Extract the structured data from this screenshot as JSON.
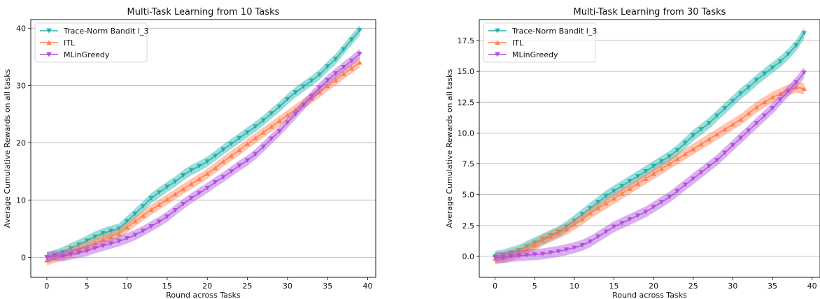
{
  "figure": {
    "title": "",
    "background": "#ffffff"
  },
  "colors": {
    "series_1": "#20b2aa",
    "series_2": "#ff7f50",
    "series_3": "#b050dd",
    "grid": "#b0b0b0"
  },
  "chart_data": [
    {
      "type": "line",
      "title": "Multi-Task Learning from 10 Tasks",
      "xlabel": "Round across Tasks",
      "ylabel": "Average Cumulative Rewards on all tasks",
      "xlim": [
        -2,
        41
      ],
      "ylim": [
        -3.5,
        41.5
      ],
      "xticks": [
        0,
        5,
        10,
        15,
        20,
        25,
        30,
        35,
        40
      ],
      "xtick_labels": [
        "0",
        "5",
        "10",
        "15",
        "20",
        "25",
        "30",
        "35",
        "40"
      ],
      "yticks": [
        0,
        10,
        20,
        30,
        40
      ],
      "ytick_labels": [
        "0",
        "10",
        "20",
        "30",
        "40"
      ],
      "grid": "horizontal",
      "legend": "top-left",
      "x": [
        0,
        1,
        2,
        3,
        4,
        5,
        6,
        7,
        8,
        9,
        10,
        11,
        12,
        13,
        14,
        15,
        16,
        17,
        18,
        19,
        20,
        21,
        22,
        23,
        24,
        25,
        26,
        27,
        28,
        29,
        30,
        31,
        32,
        33,
        34,
        35,
        36,
        37,
        38,
        39
      ],
      "series": [
        {
          "name": "Trace-Norm Bandit l_3",
          "color": "#20b2aa",
          "marker": "triangle-down",
          "band": 0.9,
          "values": [
            0,
            0.4,
            0.9,
            1.6,
            2.2,
            2.9,
            3.6,
            4.2,
            4.6,
            5.0,
            6.3,
            7.6,
            8.9,
            10.3,
            11.3,
            12.3,
            13.2,
            14.3,
            15.2,
            15.9,
            16.7,
            17.7,
            18.8,
            19.8,
            20.8,
            21.8,
            22.8,
            23.9,
            25.1,
            26.3,
            27.6,
            28.8,
            29.8,
            30.8,
            31.9,
            33.3,
            34.6,
            36.3,
            38.0,
            39.6
          ]
        },
        {
          "name": "ITL",
          "color": "#ff7f50",
          "marker": "triangle-up",
          "band": 0.9,
          "values": [
            -0.5,
            -0.1,
            0.3,
            0.9,
            1.4,
            1.9,
            2.5,
            3.1,
            3.6,
            4.1,
            5.2,
            6.3,
            7.3,
            8.3,
            9.2,
            10.1,
            11.0,
            11.9,
            12.8,
            13.7,
            14.6,
            15.6,
            16.7,
            17.7,
            18.7,
            19.8,
            20.8,
            21.8,
            22.8,
            23.8,
            24.8,
            25.8,
            26.8,
            27.8,
            28.8,
            29.9,
            30.9,
            32.0,
            33.0,
            34.0
          ]
        },
        {
          "name": "MLinGreedy",
          "color": "#b050dd",
          "marker": "triangle-down",
          "band": 0.9,
          "values": [
            0,
            0.3,
            0.2,
            0.5,
            0.8,
            1.1,
            1.6,
            2.0,
            2.4,
            2.8,
            3.3,
            3.9,
            4.6,
            5.4,
            6.2,
            7.1,
            8.2,
            9.3,
            10.3,
            11.2,
            12.1,
            13.1,
            14.0,
            15.0,
            16.0,
            16.9,
            18.0,
            19.3,
            20.7,
            22.0,
            23.5,
            25.0,
            26.6,
            28.1,
            29.6,
            30.9,
            32.1,
            33.2,
            34.3,
            35.5
          ]
        }
      ]
    },
    {
      "type": "line",
      "title": "Multi-Task Learning from 30 Tasks",
      "xlabel": "Round across Tasks",
      "ylabel": "Average Cumulative Rewards on all tasks",
      "xlim": [
        -2,
        41
      ],
      "ylim": [
        -1.7,
        19.2
      ],
      "xticks": [
        0,
        5,
        10,
        15,
        20,
        25,
        30,
        35,
        40
      ],
      "xtick_labels": [
        "0",
        "5",
        "10",
        "15",
        "20",
        "25",
        "30",
        "35",
        "40"
      ],
      "yticks": [
        0,
        2.5,
        5,
        7.5,
        10,
        12.5,
        15,
        17.5
      ],
      "ytick_labels": [
        "0.0",
        "2.5",
        "5.0",
        "7.5",
        "10.0",
        "12.5",
        "15.0",
        "17.5"
      ],
      "grid": "horizontal",
      "legend": "top-left",
      "x": [
        0,
        1,
        2,
        3,
        4,
        5,
        6,
        7,
        8,
        9,
        10,
        11,
        12,
        13,
        14,
        15,
        16,
        17,
        18,
        19,
        20,
        21,
        22,
        23,
        24,
        25,
        26,
        27,
        28,
        29,
        30,
        31,
        32,
        33,
        34,
        35,
        36,
        37,
        38,
        39
      ],
      "series": [
        {
          "name": "Trace-Norm Bandit l_3",
          "color": "#20b2aa",
          "marker": "triangle-down",
          "band": 0.45,
          "values": [
            0,
            0.1,
            0.3,
            0.5,
            0.8,
            1.1,
            1.4,
            1.7,
            2.0,
            2.4,
            2.9,
            3.4,
            3.9,
            4.4,
            4.9,
            5.3,
            5.7,
            6.1,
            6.5,
            6.9,
            7.3,
            7.7,
            8.1,
            8.6,
            9.2,
            9.8,
            10.3,
            10.8,
            11.4,
            12.0,
            12.6,
            13.2,
            13.7,
            14.3,
            14.8,
            15.3,
            15.8,
            16.4,
            17.1,
            18.1
          ]
        },
        {
          "name": "ITL",
          "color": "#ff7f50",
          "marker": "triangle-up",
          "band": 0.45,
          "values": [
            -0.2,
            -0.1,
            0.1,
            0.3,
            0.6,
            0.9,
            1.3,
            1.6,
            1.9,
            2.2,
            2.6,
            3.0,
            3.5,
            3.9,
            4.3,
            4.7,
            5.1,
            5.5,
            5.9,
            6.3,
            6.7,
            7.1,
            7.5,
            7.9,
            8.3,
            8.7,
            9.1,
            9.5,
            9.9,
            10.3,
            10.7,
            11.1,
            11.6,
            12.1,
            12.5,
            12.9,
            13.2,
            13.5,
            13.7,
            13.6
          ]
        },
        {
          "name": "MLinGreedy",
          "color": "#b050dd",
          "marker": "triangle-down",
          "band": 0.45,
          "values": [
            -0.1,
            -0.1,
            0,
            0.05,
            0.1,
            0.15,
            0.2,
            0.3,
            0.4,
            0.55,
            0.7,
            0.9,
            1.2,
            1.6,
            2.0,
            2.4,
            2.7,
            3.0,
            3.3,
            3.6,
            4.0,
            4.4,
            4.8,
            5.3,
            5.8,
            6.3,
            6.8,
            7.3,
            7.8,
            8.4,
            9.0,
            9.6,
            10.2,
            10.8,
            11.4,
            12.0,
            12.7,
            13.4,
            14.1,
            14.9
          ]
        }
      ]
    }
  ]
}
